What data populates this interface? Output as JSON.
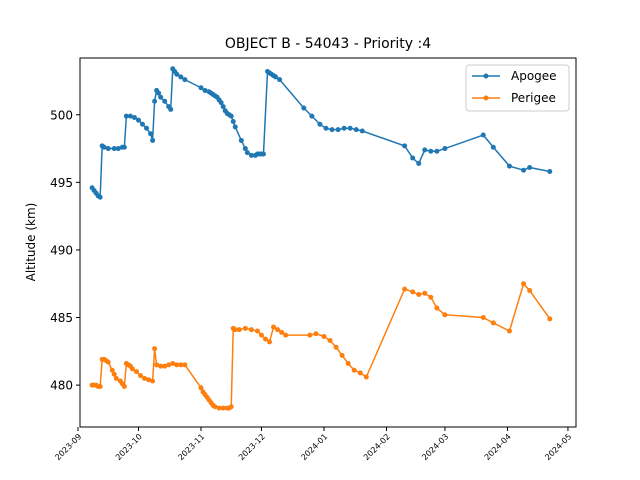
{
  "chart_data": {
    "type": "line",
    "title": "OBJECT B - 54043 - Priority :4",
    "xlabel": "",
    "ylabel": "Altitude (km)",
    "xlim": [
      "2023-09-02",
      "2024-05-05"
    ],
    "ylim": [
      476.9,
      504.2
    ],
    "x_ticks": [
      "2023-09",
      "2023-10",
      "2023-11",
      "2023-12",
      "2024-01",
      "2024-02",
      "2024-03",
      "2024-04",
      "2024-05"
    ],
    "y_ticks": [
      480,
      485,
      490,
      495,
      500
    ],
    "grid": false,
    "legend_position": "top-right",
    "series": [
      {
        "name": "Apogee",
        "color": "#1f77b4",
        "points": [
          [
            "2023-09-08",
            494.6
          ],
          [
            "2023-09-09",
            494.4
          ],
          [
            "2023-09-10",
            494.2
          ],
          [
            "2023-09-11",
            494.0
          ],
          [
            "2023-09-12",
            493.9
          ],
          [
            "2023-09-13",
            497.7
          ],
          [
            "2023-09-14",
            497.6
          ],
          [
            "2023-09-16",
            497.5
          ],
          [
            "2023-09-19",
            497.5
          ],
          [
            "2023-09-21",
            497.5
          ],
          [
            "2023-09-23",
            497.6
          ],
          [
            "2023-09-24",
            497.6
          ],
          [
            "2023-09-25",
            499.9
          ],
          [
            "2023-09-27",
            499.9
          ],
          [
            "2023-09-29",
            499.8
          ],
          [
            "2023-10-01",
            499.6
          ],
          [
            "2023-10-03",
            499.3
          ],
          [
            "2023-10-05",
            499.0
          ],
          [
            "2023-10-07",
            498.6
          ],
          [
            "2023-10-08",
            498.1
          ],
          [
            "2023-10-09",
            501.0
          ],
          [
            "2023-10-10",
            501.8
          ],
          [
            "2023-10-11",
            501.6
          ],
          [
            "2023-10-12",
            501.3
          ],
          [
            "2023-10-14",
            501.0
          ],
          [
            "2023-10-16",
            500.6
          ],
          [
            "2023-10-17",
            500.4
          ],
          [
            "2023-10-18",
            503.4
          ],
          [
            "2023-10-19",
            503.2
          ],
          [
            "2023-10-20",
            503.0
          ],
          [
            "2023-10-22",
            502.8
          ],
          [
            "2023-10-24",
            502.6
          ],
          [
            "2023-11-01",
            502.0
          ],
          [
            "2023-11-03",
            501.8
          ],
          [
            "2023-11-05",
            501.7
          ],
          [
            "2023-11-06",
            501.6
          ],
          [
            "2023-11-07",
            501.5
          ],
          [
            "2023-11-08",
            501.4
          ],
          [
            "2023-11-09",
            501.3
          ],
          [
            "2023-11-10",
            501.1
          ],
          [
            "2023-11-11",
            500.9
          ],
          [
            "2023-11-12",
            500.6
          ],
          [
            "2023-11-13",
            500.3
          ],
          [
            "2023-11-14",
            500.1
          ],
          [
            "2023-11-15",
            500.0
          ],
          [
            "2023-11-16",
            499.9
          ],
          [
            "2023-11-17",
            499.5
          ],
          [
            "2023-11-18",
            499.1
          ],
          [
            "2023-11-21",
            498.1
          ],
          [
            "2023-11-23",
            497.5
          ],
          [
            "2023-11-24",
            497.2
          ],
          [
            "2023-11-26",
            497.0
          ],
          [
            "2023-11-28",
            497.0
          ],
          [
            "2023-11-29",
            497.1
          ],
          [
            "2023-11-30",
            497.1
          ],
          [
            "2023-12-01",
            497.1
          ],
          [
            "2023-12-02",
            497.1
          ],
          [
            "2023-12-04",
            503.2
          ],
          [
            "2023-12-05",
            503.1
          ],
          [
            "2023-12-06",
            503.0
          ],
          [
            "2023-12-07",
            502.9
          ],
          [
            "2023-12-08",
            502.8
          ],
          [
            "2023-12-10",
            502.6
          ],
          [
            "2023-12-22",
            500.5
          ],
          [
            "2023-12-26",
            499.9
          ],
          [
            "2023-12-30",
            499.3
          ],
          [
            "2024-01-02",
            499.0
          ],
          [
            "2024-01-05",
            498.9
          ],
          [
            "2024-01-08",
            498.9
          ],
          [
            "2024-01-11",
            499.0
          ],
          [
            "2024-01-14",
            499.0
          ],
          [
            "2024-01-17",
            498.9
          ],
          [
            "2024-01-20",
            498.8
          ],
          [
            "2024-02-10",
            497.7
          ],
          [
            "2024-02-14",
            496.8
          ],
          [
            "2024-02-17",
            496.4
          ],
          [
            "2024-02-20",
            497.4
          ],
          [
            "2024-02-23",
            497.3
          ],
          [
            "2024-02-26",
            497.3
          ],
          [
            "2024-03-01",
            497.5
          ],
          [
            "2024-03-20",
            498.5
          ],
          [
            "2024-03-25",
            497.6
          ],
          [
            "2024-04-02",
            496.2
          ],
          [
            "2024-04-09",
            495.9
          ],
          [
            "2024-04-12",
            496.1
          ],
          [
            "2024-04-22",
            495.8
          ]
        ]
      },
      {
        "name": "Perigee",
        "color": "#ff7f0e",
        "points": [
          [
            "2023-09-08",
            480.0
          ],
          [
            "2023-09-09",
            480.0
          ],
          [
            "2023-09-10",
            480.0
          ],
          [
            "2023-09-11",
            479.9
          ],
          [
            "2023-09-12",
            479.9
          ],
          [
            "2023-09-13",
            481.9
          ],
          [
            "2023-09-14",
            481.9
          ],
          [
            "2023-09-15",
            481.8
          ],
          [
            "2023-09-16",
            481.7
          ],
          [
            "2023-09-18",
            481.1
          ],
          [
            "2023-09-19",
            480.8
          ],
          [
            "2023-09-20",
            480.5
          ],
          [
            "2023-09-22",
            480.3
          ],
          [
            "2023-09-23",
            480.1
          ],
          [
            "2023-09-24",
            479.9
          ],
          [
            "2023-09-25",
            481.6
          ],
          [
            "2023-09-26",
            481.5
          ],
          [
            "2023-09-27",
            481.4
          ],
          [
            "2023-09-28",
            481.2
          ],
          [
            "2023-09-30",
            481.0
          ],
          [
            "2023-10-02",
            480.7
          ],
          [
            "2023-10-04",
            480.5
          ],
          [
            "2023-10-06",
            480.4
          ],
          [
            "2023-10-08",
            480.3
          ],
          [
            "2023-10-09",
            482.7
          ],
          [
            "2023-10-10",
            481.5
          ],
          [
            "2023-10-12",
            481.4
          ],
          [
            "2023-10-14",
            481.4
          ],
          [
            "2023-10-16",
            481.5
          ],
          [
            "2023-10-18",
            481.6
          ],
          [
            "2023-10-20",
            481.5
          ],
          [
            "2023-10-22",
            481.5
          ],
          [
            "2023-10-24",
            481.5
          ],
          [
            "2023-11-01",
            479.8
          ],
          [
            "2023-11-02",
            479.5
          ],
          [
            "2023-11-03",
            479.3
          ],
          [
            "2023-11-04",
            479.1
          ],
          [
            "2023-11-05",
            478.9
          ],
          [
            "2023-11-06",
            478.7
          ],
          [
            "2023-11-07",
            478.5
          ],
          [
            "2023-11-08",
            478.4
          ],
          [
            "2023-11-10",
            478.3
          ],
          [
            "2023-11-12",
            478.3
          ],
          [
            "2023-11-14",
            478.3
          ],
          [
            "2023-11-15",
            478.3
          ],
          [
            "2023-11-16",
            478.4
          ],
          [
            "2023-11-17",
            484.2
          ],
          [
            "2023-11-18",
            484.1
          ],
          [
            "2023-11-20",
            484.1
          ],
          [
            "2023-11-23",
            484.2
          ],
          [
            "2023-11-26",
            484.1
          ],
          [
            "2023-11-29",
            484.0
          ],
          [
            "2023-12-01",
            483.7
          ],
          [
            "2023-12-03",
            483.4
          ],
          [
            "2023-12-05",
            483.2
          ],
          [
            "2023-12-07",
            484.3
          ],
          [
            "2023-12-09",
            484.1
          ],
          [
            "2023-12-11",
            483.9
          ],
          [
            "2023-12-13",
            483.7
          ],
          [
            "2023-12-25",
            483.7
          ],
          [
            "2023-12-28",
            483.8
          ],
          [
            "2024-01-01",
            483.6
          ],
          [
            "2024-01-04",
            483.3
          ],
          [
            "2024-01-07",
            482.8
          ],
          [
            "2024-01-10",
            482.2
          ],
          [
            "2024-01-13",
            481.6
          ],
          [
            "2024-01-16",
            481.1
          ],
          [
            "2024-01-19",
            480.9
          ],
          [
            "2024-01-22",
            480.6
          ],
          [
            "2024-02-10",
            487.1
          ],
          [
            "2024-02-14",
            486.9
          ],
          [
            "2024-02-17",
            486.7
          ],
          [
            "2024-02-20",
            486.8
          ],
          [
            "2024-02-23",
            486.5
          ],
          [
            "2024-02-26",
            485.7
          ],
          [
            "2024-03-01",
            485.2
          ],
          [
            "2024-03-20",
            485.0
          ],
          [
            "2024-03-25",
            484.6
          ],
          [
            "2024-04-02",
            484.0
          ],
          [
            "2024-04-09",
            487.5
          ],
          [
            "2024-04-12",
            487.0
          ],
          [
            "2024-04-22",
            484.9
          ]
        ]
      }
    ]
  }
}
